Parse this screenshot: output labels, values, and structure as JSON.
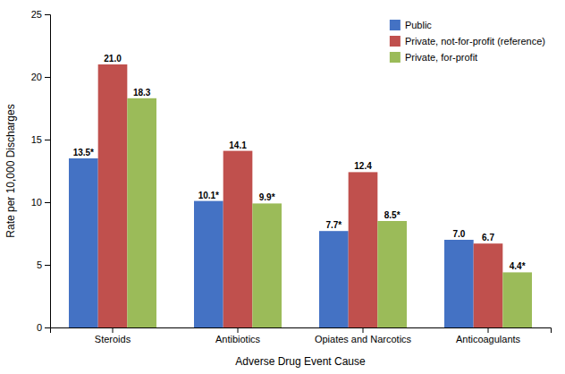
{
  "chart_data": {
    "type": "bar",
    "categories": [
      "Steroids",
      "Antibiotics",
      "Opiates and Narcotics",
      "Anticoagulants"
    ],
    "series": [
      {
        "name": "Public",
        "color": "#4472C4",
        "values": [
          13.5,
          10.1,
          7.7,
          7.0
        ],
        "value_labels": [
          "13.5*",
          "10.1*",
          "7.7*",
          "7.0"
        ]
      },
      {
        "name": "Private, not-for-profit (reference)",
        "color": "#C0504D",
        "values": [
          21.0,
          14.1,
          12.4,
          6.7
        ],
        "value_labels": [
          "21.0",
          "14.1",
          "12.4",
          "6.7"
        ]
      },
      {
        "name": "Private, for-profit",
        "color": "#9BBB59",
        "values": [
          18.3,
          9.9,
          8.5,
          4.4
        ],
        "value_labels": [
          "18.3",
          "9.9*",
          "8.5*",
          "4.4*"
        ]
      }
    ],
    "xlabel": "Adverse Drug Event Cause",
    "ylabel": "Rate per 10,000  Discharges",
    "ylim": [
      0,
      25
    ],
    "yticks": [
      0,
      5,
      10,
      15,
      20,
      25
    ],
    "grid": false,
    "legend": "upper right",
    "data_labels": true
  }
}
